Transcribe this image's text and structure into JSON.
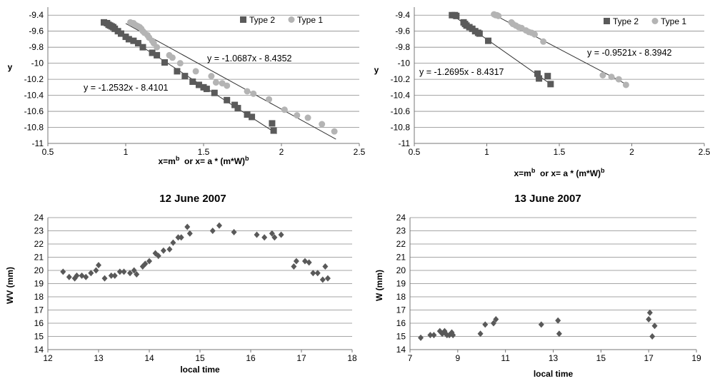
{
  "date_labels": [
    "12 June 2007",
    "13 June 2007"
  ],
  "colors": {
    "type2": "#5a5a5a",
    "type1": "#b4b4b4",
    "diamond": "#595959",
    "grid": "#888888",
    "line": "#333333"
  },
  "chart_data": [
    {
      "type": "scatter",
      "xlabel_pre": "x=m",
      "xlabel_sup1": "b",
      "xlabel_mid": "  or x= a * (m*W)",
      "xlabel_sup2": "b",
      "ylabel": "y",
      "xlim": [
        0.5,
        2.5
      ],
      "ylim": [
        -11,
        -9.3
      ],
      "xticks": [
        0.5,
        1,
        1.5,
        2,
        2.5
      ],
      "xtick_labels": [
        "0.5",
        "1",
        "1.5",
        "2",
        "2.5"
      ],
      "yticks": [
        -9.4,
        -9.6,
        -9.8,
        -10,
        -10.2,
        -10.4,
        -10.6,
        -10.8,
        -11
      ],
      "ytick_labels": [
        "-9.4",
        "-9.6",
        "-9.8",
        "-10",
        "-10.2",
        "-10.4",
        "-10.6",
        "-10.8",
        "-11"
      ],
      "legend_position": "top-right",
      "series": [
        {
          "name": "Type 2",
          "marker": "square",
          "x": [
            0.86,
            0.88,
            0.89,
            0.9,
            0.91,
            0.92,
            0.93,
            0.95,
            0.97,
            1.0,
            1.02,
            1.05,
            1.08,
            1.11,
            1.17,
            1.2,
            1.25,
            1.33,
            1.38,
            1.43,
            1.47,
            1.5,
            1.52,
            1.57,
            1.65,
            1.7,
            1.72,
            1.78,
            1.81,
            1.94,
            1.95
          ],
          "y": [
            -9.49,
            -9.5,
            -9.52,
            -9.53,
            -9.54,
            -9.55,
            -9.57,
            -9.6,
            -9.63,
            -9.67,
            -9.7,
            -9.72,
            -9.75,
            -9.8,
            -9.87,
            -9.9,
            -9.99,
            -10.1,
            -10.16,
            -10.23,
            -10.27,
            -10.3,
            -10.32,
            -10.37,
            -10.46,
            -10.52,
            -10.56,
            -10.64,
            -10.67,
            -10.75,
            -10.84
          ]
        },
        {
          "name": "Type 1",
          "marker": "circle",
          "x": [
            1.03,
            1.04,
            1.05,
            1.06,
            1.07,
            1.08,
            1.09,
            1.1,
            1.11,
            1.12,
            1.14,
            1.15,
            1.17,
            1.18,
            1.2,
            1.28,
            1.3,
            1.35,
            1.45,
            1.55,
            1.58,
            1.62,
            1.65,
            1.78,
            1.82,
            1.92,
            2.02,
            2.1,
            2.17,
            2.26,
            2.34
          ],
          "y": [
            -9.49,
            -9.5,
            -9.5,
            -9.52,
            -9.53,
            -9.54,
            -9.55,
            -9.57,
            -9.6,
            -9.62,
            -9.65,
            -9.68,
            -9.72,
            -9.75,
            -9.8,
            -9.9,
            -9.93,
            -10.0,
            -10.1,
            -10.16,
            -10.24,
            -10.25,
            -10.28,
            -10.35,
            -10.38,
            -10.45,
            -10.58,
            -10.65,
            -10.68,
            -10.76,
            -10.85
          ]
        }
      ],
      "trendlines": [
        {
          "label": "y = -1.0687x - 8.4352",
          "slope": -1.0687,
          "intercept": -8.4352,
          "x_range": [
            1.0,
            2.35
          ]
        },
        {
          "label": "y = -1.2532x - 8.4101",
          "slope": -1.2532,
          "intercept": -8.4101,
          "x_range": [
            0.85,
            1.97
          ]
        }
      ]
    },
    {
      "type": "scatter",
      "xlabel_pre": "x=m",
      "xlabel_sup1": "b",
      "xlabel_mid": "  or x= a * (m*W)",
      "xlabel_sup2": "b",
      "ylabel": "y",
      "xlim": [
        0.5,
        2.5
      ],
      "ylim": [
        -11,
        -9.3
      ],
      "xticks": [
        0.5,
        1,
        1.5,
        2,
        2.5
      ],
      "xtick_labels": [
        "0.5",
        "1",
        "1.5",
        "2",
        "2.5"
      ],
      "yticks": [
        -9.4,
        -9.6,
        -9.8,
        -10,
        -10.2,
        -10.4,
        -10.6,
        -10.8,
        -11
      ],
      "ytick_labels": [
        "-9.4",
        "-9.6",
        "-9.8",
        "-10",
        "-10.2",
        "-10.4",
        "-10.6",
        "-10.8",
        "-11"
      ],
      "legend_position": "top-right",
      "series": [
        {
          "name": "Type 2",
          "marker": "square",
          "x": [
            0.76,
            0.78,
            0.79,
            0.84,
            0.85,
            0.86,
            0.88,
            0.9,
            0.92,
            0.94,
            0.95,
            1.01,
            1.35,
            1.36,
            1.42,
            1.44
          ],
          "y": [
            -9.4,
            -9.4,
            -9.41,
            -9.49,
            -9.51,
            -9.53,
            -9.55,
            -9.57,
            -9.6,
            -9.62,
            -9.63,
            -9.72,
            -10.13,
            -10.19,
            -10.16,
            -10.26
          ]
        },
        {
          "name": "Type 1",
          "marker": "circle",
          "x": [
            1.05,
            1.06,
            1.07,
            1.08,
            1.17,
            1.18,
            1.2,
            1.22,
            1.24,
            1.27,
            1.29,
            1.31,
            1.33,
            1.39,
            1.8,
            1.86,
            1.91,
            1.96
          ],
          "y": [
            -9.39,
            -9.4,
            -9.4,
            -9.41,
            -9.49,
            -9.51,
            -9.53,
            -9.55,
            -9.56,
            -9.59,
            -9.61,
            -9.62,
            -9.64,
            -9.73,
            -10.15,
            -10.17,
            -10.2,
            -10.27
          ]
        }
      ],
      "trendlines": [
        {
          "label": "y = -0.9521x - 8.3942",
          "slope": -0.9521,
          "intercept": -8.3942,
          "x_range": [
            1.05,
            1.97
          ]
        },
        {
          "label": "y = -1.2695x - 8.4317",
          "slope": -1.2695,
          "intercept": -8.4317,
          "x_range": [
            0.75,
            1.45
          ]
        }
      ]
    },
    {
      "type": "scatter",
      "xlabel": "local time",
      "ylabel": "WV (mm)",
      "xlim": [
        12,
        18
      ],
      "ylim": [
        14,
        24
      ],
      "xticks": [
        12,
        13,
        14,
        15,
        16,
        17,
        18
      ],
      "xtick_labels": [
        "12",
        "13",
        "14",
        "15",
        "16",
        "17",
        "18"
      ],
      "yticks": [
        14,
        15,
        16,
        17,
        18,
        19,
        20,
        21,
        22,
        23,
        24
      ],
      "ytick_labels": [
        "14",
        "15",
        "16",
        "17",
        "18",
        "19",
        "20",
        "21",
        "22",
        "23",
        "24"
      ],
      "series": [
        {
          "marker": "diamond",
          "x": [
            12.3,
            12.42,
            12.53,
            12.57,
            12.67,
            12.75,
            12.85,
            12.95,
            13.0,
            13.12,
            13.25,
            13.32,
            13.42,
            13.5,
            13.62,
            13.7,
            13.75,
            13.87,
            13.92,
            14.0,
            14.12,
            14.18,
            14.28,
            14.4,
            14.47,
            14.57,
            14.63,
            14.75,
            14.8,
            15.25,
            15.38,
            15.67,
            16.12,
            16.27,
            16.42,
            16.47,
            16.6,
            16.85,
            16.9,
            17.07,
            17.15,
            17.23,
            17.32,
            17.42,
            17.47,
            17.52
          ],
          "y": [
            19.9,
            19.5,
            19.4,
            19.6,
            19.6,
            19.5,
            19.8,
            20.0,
            20.4,
            19.4,
            19.6,
            19.6,
            19.9,
            19.9,
            19.8,
            20.0,
            19.7,
            20.3,
            20.5,
            20.7,
            21.3,
            21.1,
            21.5,
            21.6,
            22.1,
            22.5,
            22.5,
            23.3,
            22.8,
            23.0,
            23.4,
            22.9,
            22.7,
            22.5,
            22.8,
            22.5,
            22.7,
            20.3,
            20.7,
            20.7,
            20.6,
            19.8,
            19.8,
            19.3,
            20.3,
            19.4
          ]
        }
      ]
    },
    {
      "type": "scatter",
      "xlabel": "local time",
      "ylabel": "W (mm)",
      "xlim": [
        7,
        19
      ],
      "ylim": [
        14,
        24
      ],
      "xticks": [
        7,
        9,
        11,
        13,
        15,
        17,
        19
      ],
      "xtick_labels": [
        "7",
        "9",
        "11",
        "13",
        "15",
        "17",
        "19"
      ],
      "yticks": [
        14,
        15,
        16,
        17,
        18,
        19,
        20,
        21,
        22,
        23,
        24
      ],
      "ytick_labels": [
        "14",
        "15",
        "16",
        "17",
        "18",
        "19",
        "20",
        "21",
        "22",
        "23",
        "24"
      ],
      "series": [
        {
          "marker": "diamond",
          "x": [
            7.45,
            7.85,
            8.0,
            8.25,
            8.35,
            8.45,
            8.5,
            8.55,
            8.65,
            8.75,
            8.8,
            9.95,
            10.15,
            10.5,
            10.6,
            12.5,
            13.2,
            13.25,
            17.0,
            17.05,
            17.15,
            17.25
          ],
          "y": [
            14.9,
            15.1,
            15.1,
            15.4,
            15.2,
            15.4,
            15.2,
            15.1,
            15.1,
            15.3,
            15.1,
            15.2,
            15.9,
            16.0,
            16.3,
            15.9,
            16.2,
            15.2,
            16.3,
            16.8,
            15.0,
            15.8
          ]
        }
      ]
    }
  ]
}
